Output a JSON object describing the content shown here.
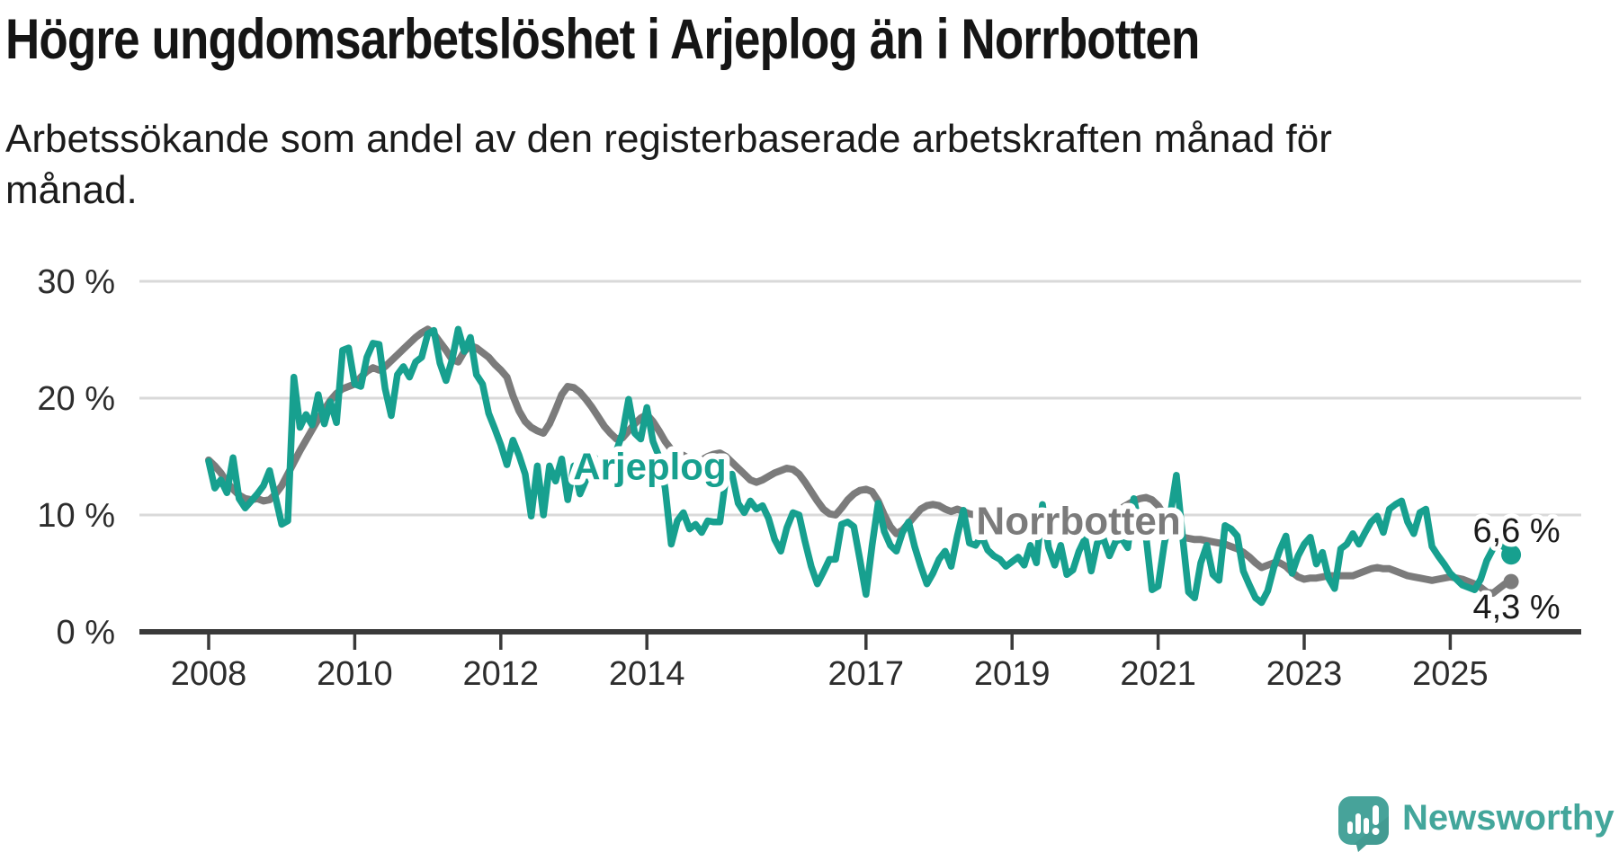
{
  "header": {
    "title": "Högre ungdomsarbetslöshet i Arjeplog än i Norrbotten",
    "subtitle": "Arbetssökande som andel av den registerbaserade arbetskraften månad för månad."
  },
  "branding": {
    "logo_icon": "newsworthy-speech-bubble-bar-chart",
    "logo_text": "Newsworthy",
    "logo_color": "#43a69b"
  },
  "chart_data": {
    "type": "line",
    "title": "Högre ungdomsarbetslöshet i Arjeplog än i Norrbotten",
    "subtitle": "Arbetssökande som andel av den registerbaserade arbetskraften månad för månad.",
    "unit": "%",
    "frequency": "monthly",
    "start_year": 2008,
    "x_axis": {
      "tick_years": [
        2008,
        2010,
        2012,
        2014,
        2017,
        2019,
        2021,
        2023,
        2025
      ],
      "range": [
        2008.0,
        2025.84
      ]
    },
    "y_axis": {
      "tick_values": [
        0,
        10,
        20,
        30
      ],
      "tick_labels": [
        "0 %",
        "10 %",
        "20 %",
        "30 %"
      ],
      "ylim": [
        0,
        30
      ],
      "grid": "horizontal"
    },
    "legend": "inline-labels",
    "series": [
      {
        "name": "Norrbotten",
        "color": "#7b7b7b",
        "line_width": 8,
        "end_dot_radius": 8.5,
        "end_value": 4.3,
        "end_label": "4,3 %",
        "end_label_side": "below",
        "label_pos": [
          2019.91,
          9.5
        ],
        "label_font_size": 44,
        "values": [
          14.7,
          14.2,
          13.6,
          12.8,
          12.2,
          11.7,
          11.4,
          11.3,
          11.4,
          11.2,
          11.3,
          11.8,
          12.5,
          13.5,
          14.5,
          15.5,
          16.4,
          17.3,
          18.2,
          19.0,
          19.8,
          20.4,
          20.8,
          21.0,
          21.2,
          21.8,
          22.3,
          22.6,
          22.4,
          22.7,
          23.2,
          23.7,
          24.2,
          24.7,
          25.2,
          25.6,
          25.9,
          25.5,
          24.8,
          24.1,
          23.3,
          23.1,
          24.0,
          24.5,
          24.3,
          23.9,
          23.5,
          22.9,
          22.4,
          21.8,
          20.2,
          18.9,
          18.0,
          17.5,
          17.2,
          17.0,
          17.8,
          19.0,
          20.3,
          21.0,
          20.9,
          20.5,
          19.9,
          19.2,
          18.4,
          17.6,
          17.0,
          16.5,
          16.6,
          17.2,
          17.8,
          18.3,
          18.6,
          18.0,
          17.2,
          16.3,
          15.6,
          15.2,
          15.1,
          14.8,
          14.5,
          14.7,
          15.0,
          15.2,
          15.3,
          15.0,
          14.5,
          14.0,
          13.5,
          13.0,
          12.8,
          13.0,
          13.3,
          13.6,
          13.8,
          14.0,
          13.9,
          13.5,
          12.8,
          12.0,
          11.2,
          10.5,
          10.1,
          10.0,
          10.6,
          11.3,
          11.8,
          12.1,
          12.2,
          12.0,
          11.2,
          10.0,
          9.0,
          8.4,
          8.7,
          9.3,
          9.9,
          10.5,
          10.8,
          10.9,
          10.8,
          10.5,
          10.3,
          10.5,
          10.3,
          10.1,
          10.0,
          9.8,
          9.7,
          9.8,
          9.9,
          10.0,
          10.0,
          9.8,
          9.6,
          9.4,
          9.2,
          9.1,
          9.0,
          8.9,
          8.8,
          8.9,
          9.0,
          9.1,
          9.1,
          9.3,
          9.6,
          10.0,
          10.2,
          10.4,
          10.6,
          10.9,
          11.2,
          11.4,
          11.5,
          11.3,
          10.8,
          10.0,
          9.2,
          8.5,
          8.1,
          8.0,
          7.9,
          7.9,
          7.8,
          7.7,
          7.6,
          7.5,
          7.3,
          7.1,
          6.8,
          6.4,
          5.9,
          5.5,
          5.7,
          5.9,
          5.9,
          5.6,
          5.1,
          4.7,
          4.5,
          4.6,
          4.6,
          4.7,
          4.8,
          4.8,
          4.8,
          4.8,
          4.8,
          5.0,
          5.2,
          5.4,
          5.5,
          5.4,
          5.4,
          5.2,
          5.0,
          4.8,
          4.7,
          4.6,
          4.5,
          4.4,
          4.5,
          4.6,
          4.7,
          4.6,
          4.5,
          4.3,
          4.1,
          3.8,
          3.4,
          3.3,
          3.7,
          4.1,
          4.3
        ]
      },
      {
        "name": "Arjeplog",
        "color": "#17a08f",
        "line_width": 7.5,
        "end_dot_radius": 11,
        "end_value": 6.6,
        "end_label": "6,6 %",
        "end_label_side": "above",
        "label_pos": [
          2014.04,
          14.2
        ],
        "label_font_size": 42,
        "values": [
          14.6,
          12.3,
          13.0,
          11.9,
          14.9,
          11.4,
          10.6,
          11.2,
          11.8,
          12.5,
          13.8,
          11.5,
          9.2,
          9.5,
          21.8,
          17.5,
          18.6,
          17.7,
          20.3,
          17.8,
          19.7,
          17.9,
          24.1,
          24.3,
          21.2,
          21.0,
          23.5,
          24.7,
          24.6,
          20.8,
          18.5,
          22.0,
          22.7,
          21.8,
          23.1,
          23.5,
          25.5,
          25.8,
          23.0,
          21.5,
          23.3,
          25.9,
          24.0,
          25.2,
          22.0,
          21.2,
          18.7,
          17.4,
          16.0,
          14.3,
          16.4,
          15.1,
          13.5,
          9.9,
          14.2,
          10.0,
          14.2,
          12.9,
          14.8,
          11.3,
          14.2,
          11.8,
          13.0,
          15.2,
          14.5,
          13.5,
          14.0,
          15.5,
          17.0,
          19.9,
          17.0,
          16.5,
          19.2,
          16.3,
          15.0,
          12.3,
          7.5,
          9.5,
          10.2,
          8.8,
          9.2,
          8.5,
          9.5,
          9.4,
          9.4,
          13.3,
          13.5,
          11.0,
          10.2,
          11.2,
          10.5,
          10.8,
          9.7,
          7.9,
          6.9,
          8.9,
          10.2,
          10.0,
          7.7,
          5.6,
          4.1,
          5.1,
          6.2,
          6.2,
          9.2,
          9.4,
          9.0,
          6.2,
          3.2,
          7.4,
          11.0,
          8.6,
          7.4,
          6.9,
          8.5,
          9.4,
          7.3,
          5.6,
          4.1,
          5.0,
          6.2,
          6.9,
          5.6,
          8.2,
          10.4,
          7.6,
          7.4,
          8.2,
          7.0,
          6.5,
          6.2,
          5.6,
          6.0,
          6.4,
          5.7,
          7.4,
          5.9,
          10.9,
          7.2,
          5.7,
          7.4,
          4.9,
          5.3,
          6.9,
          8.0,
          5.2,
          7.6,
          8.0,
          6.5,
          7.7,
          8.0,
          7.2,
          11.4,
          8.8,
          8.2,
          3.6,
          3.9,
          7.5,
          10.0,
          13.4,
          8.2,
          3.4,
          2.9,
          5.9,
          7.4,
          4.9,
          4.4,
          9.1,
          8.8,
          8.2,
          5.2,
          4.0,
          2.9,
          2.5,
          3.5,
          5.5,
          7.0,
          8.2,
          5.0,
          6.5,
          7.5,
          8.1,
          5.8,
          6.8,
          4.6,
          3.7,
          7.1,
          7.5,
          8.4,
          7.5,
          8.5,
          9.4,
          9.9,
          8.5,
          10.5,
          10.9,
          11.2,
          9.4,
          8.4,
          10.2,
          10.5,
          7.3,
          6.5,
          5.8,
          5.0,
          4.5,
          4.0,
          3.8,
          3.6,
          4.5,
          6.1,
          7.1,
          7.5,
          7.2,
          6.6
        ]
      }
    ],
    "style": {
      "grid_color": "#d9d9d9",
      "axis_color": "#3a3a3a",
      "tick_label_color": "#2d2d2d",
      "end_label_color": "#1a1a1a",
      "label_halo_color": "#ffffff"
    }
  }
}
